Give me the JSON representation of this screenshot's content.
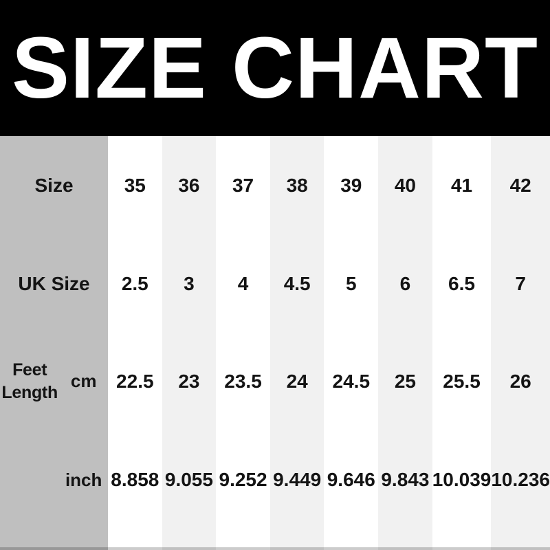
{
  "header": {
    "title": "SIZE CHART"
  },
  "colors": {
    "banner_bg": "#000000",
    "banner_text": "#ffffff",
    "label_column_bg": "#bfbfbf",
    "stripe_bg": "#f1f1f1",
    "white_bg": "#ffffff",
    "text": "#141414"
  },
  "table": {
    "rows": [
      {
        "label": "Size",
        "unit": "",
        "values": [
          "35",
          "36",
          "37",
          "38",
          "39",
          "40",
          "41",
          "42"
        ]
      },
      {
        "label": "UK Size",
        "unit": "",
        "values": [
          "2.5",
          "3",
          "4",
          "4.5",
          "5",
          "6",
          "6.5",
          "7"
        ]
      },
      {
        "label": "Feet Length",
        "unit": "cm",
        "values": [
          "22.5",
          "23",
          "23.5",
          "24",
          "24.5",
          "25",
          "25.5",
          "26"
        ]
      },
      {
        "label": "",
        "unit": "inch",
        "values": [
          "8.858",
          "9.055",
          "9.252",
          "9.449",
          "9.646",
          "9.843",
          "10.039",
          "10.236"
        ]
      }
    ]
  },
  "chart_data": {
    "type": "table",
    "title": "SIZE CHART",
    "rows": [
      {
        "name": "Size",
        "values": [
          35,
          36,
          37,
          38,
          39,
          40,
          41,
          42
        ]
      },
      {
        "name": "UK Size",
        "values": [
          2.5,
          3,
          4,
          4.5,
          5,
          6,
          6.5,
          7
        ]
      },
      {
        "name": "Feet Length (cm)",
        "values": [
          22.5,
          23,
          23.5,
          24,
          24.5,
          25,
          25.5,
          26
        ]
      },
      {
        "name": "Feet Length (inch)",
        "values": [
          8.858,
          9.055,
          9.252,
          9.449,
          9.646,
          9.843,
          10.039,
          10.236
        ]
      }
    ],
    "layout": {
      "label_column": "left",
      "column_striping": "alternating white / light-gray",
      "gridlines": false
    }
  }
}
